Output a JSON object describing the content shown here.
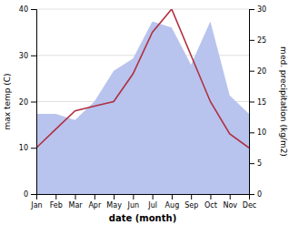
{
  "chart_data": {
    "type": "line",
    "categories": [
      "Jan",
      "Feb",
      "Mar",
      "Apr",
      "May",
      "Jun",
      "Jul",
      "Aug",
      "Sep",
      "Oct",
      "Nov",
      "Dec"
    ],
    "xlabel": "date (month)",
    "ylabel": "max temp (C)",
    "y2label": "med. precipitation (kg/m2)",
    "ylim": [
      0,
      40
    ],
    "yticks": [
      0,
      10,
      20,
      30,
      40
    ],
    "y2lim": [
      0,
      30
    ],
    "y2ticks": [
      0,
      5,
      10,
      15,
      20,
      25,
      30
    ],
    "grid": true,
    "series": [
      {
        "type": "area",
        "color": "#b8c4ee",
        "axis": "y2",
        "values": [
          13,
          13,
          12,
          15,
          20,
          22,
          28,
          27,
          21,
          28,
          16,
          13
        ]
      },
      {
        "type": "line",
        "color": "#b03040",
        "values": [
          10,
          14,
          18,
          19,
          20,
          26,
          35,
          40,
          30,
          20,
          13,
          10
        ]
      }
    ]
  }
}
